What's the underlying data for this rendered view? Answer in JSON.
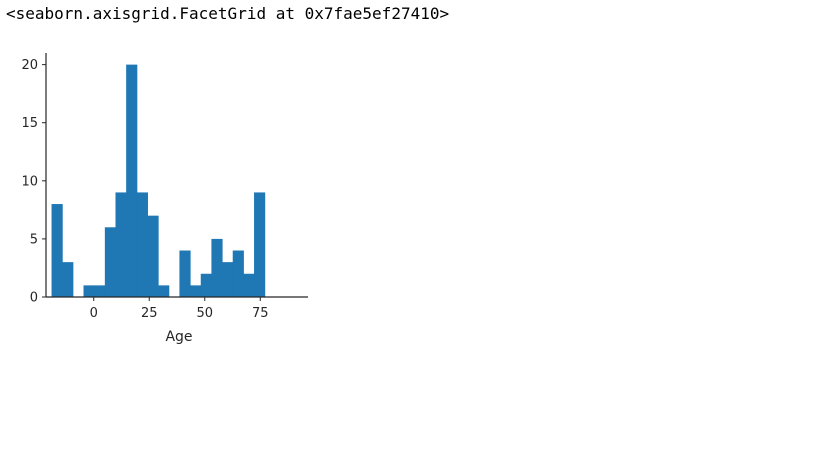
{
  "output": {
    "repr_text": "<seaborn.axisgrid.FacetGrid at 0x7fae5ef27410>"
  },
  "chart_data": {
    "type": "bar",
    "subtype": "histogram",
    "bar_color": "#1f77b4",
    "xlabel": "Age",
    "ylabel": "",
    "grid": false,
    "xlim": [
      -21.5,
      96.5
    ],
    "ylim": [
      0,
      21
    ],
    "xticks": [
      0,
      25,
      50,
      75
    ],
    "yticks": [
      0,
      5,
      10,
      15,
      20
    ],
    "bin_edges": [
      -19,
      -14.2,
      -9.4,
      -4.6,
      0.2,
      5,
      9.8,
      14.6,
      19.4,
      24.2,
      29,
      33.8,
      38.6,
      43.4,
      48.2,
      53,
      57.8,
      62.6,
      67.4,
      72.2,
      77,
      81.8,
      86.6,
      91.4
    ],
    "counts": [
      8,
      3,
      0,
      1,
      1,
      6,
      9,
      20,
      9,
      7,
      1,
      0,
      4,
      1,
      2,
      5,
      3,
      4,
      2,
      9,
      0,
      0,
      0
    ]
  }
}
